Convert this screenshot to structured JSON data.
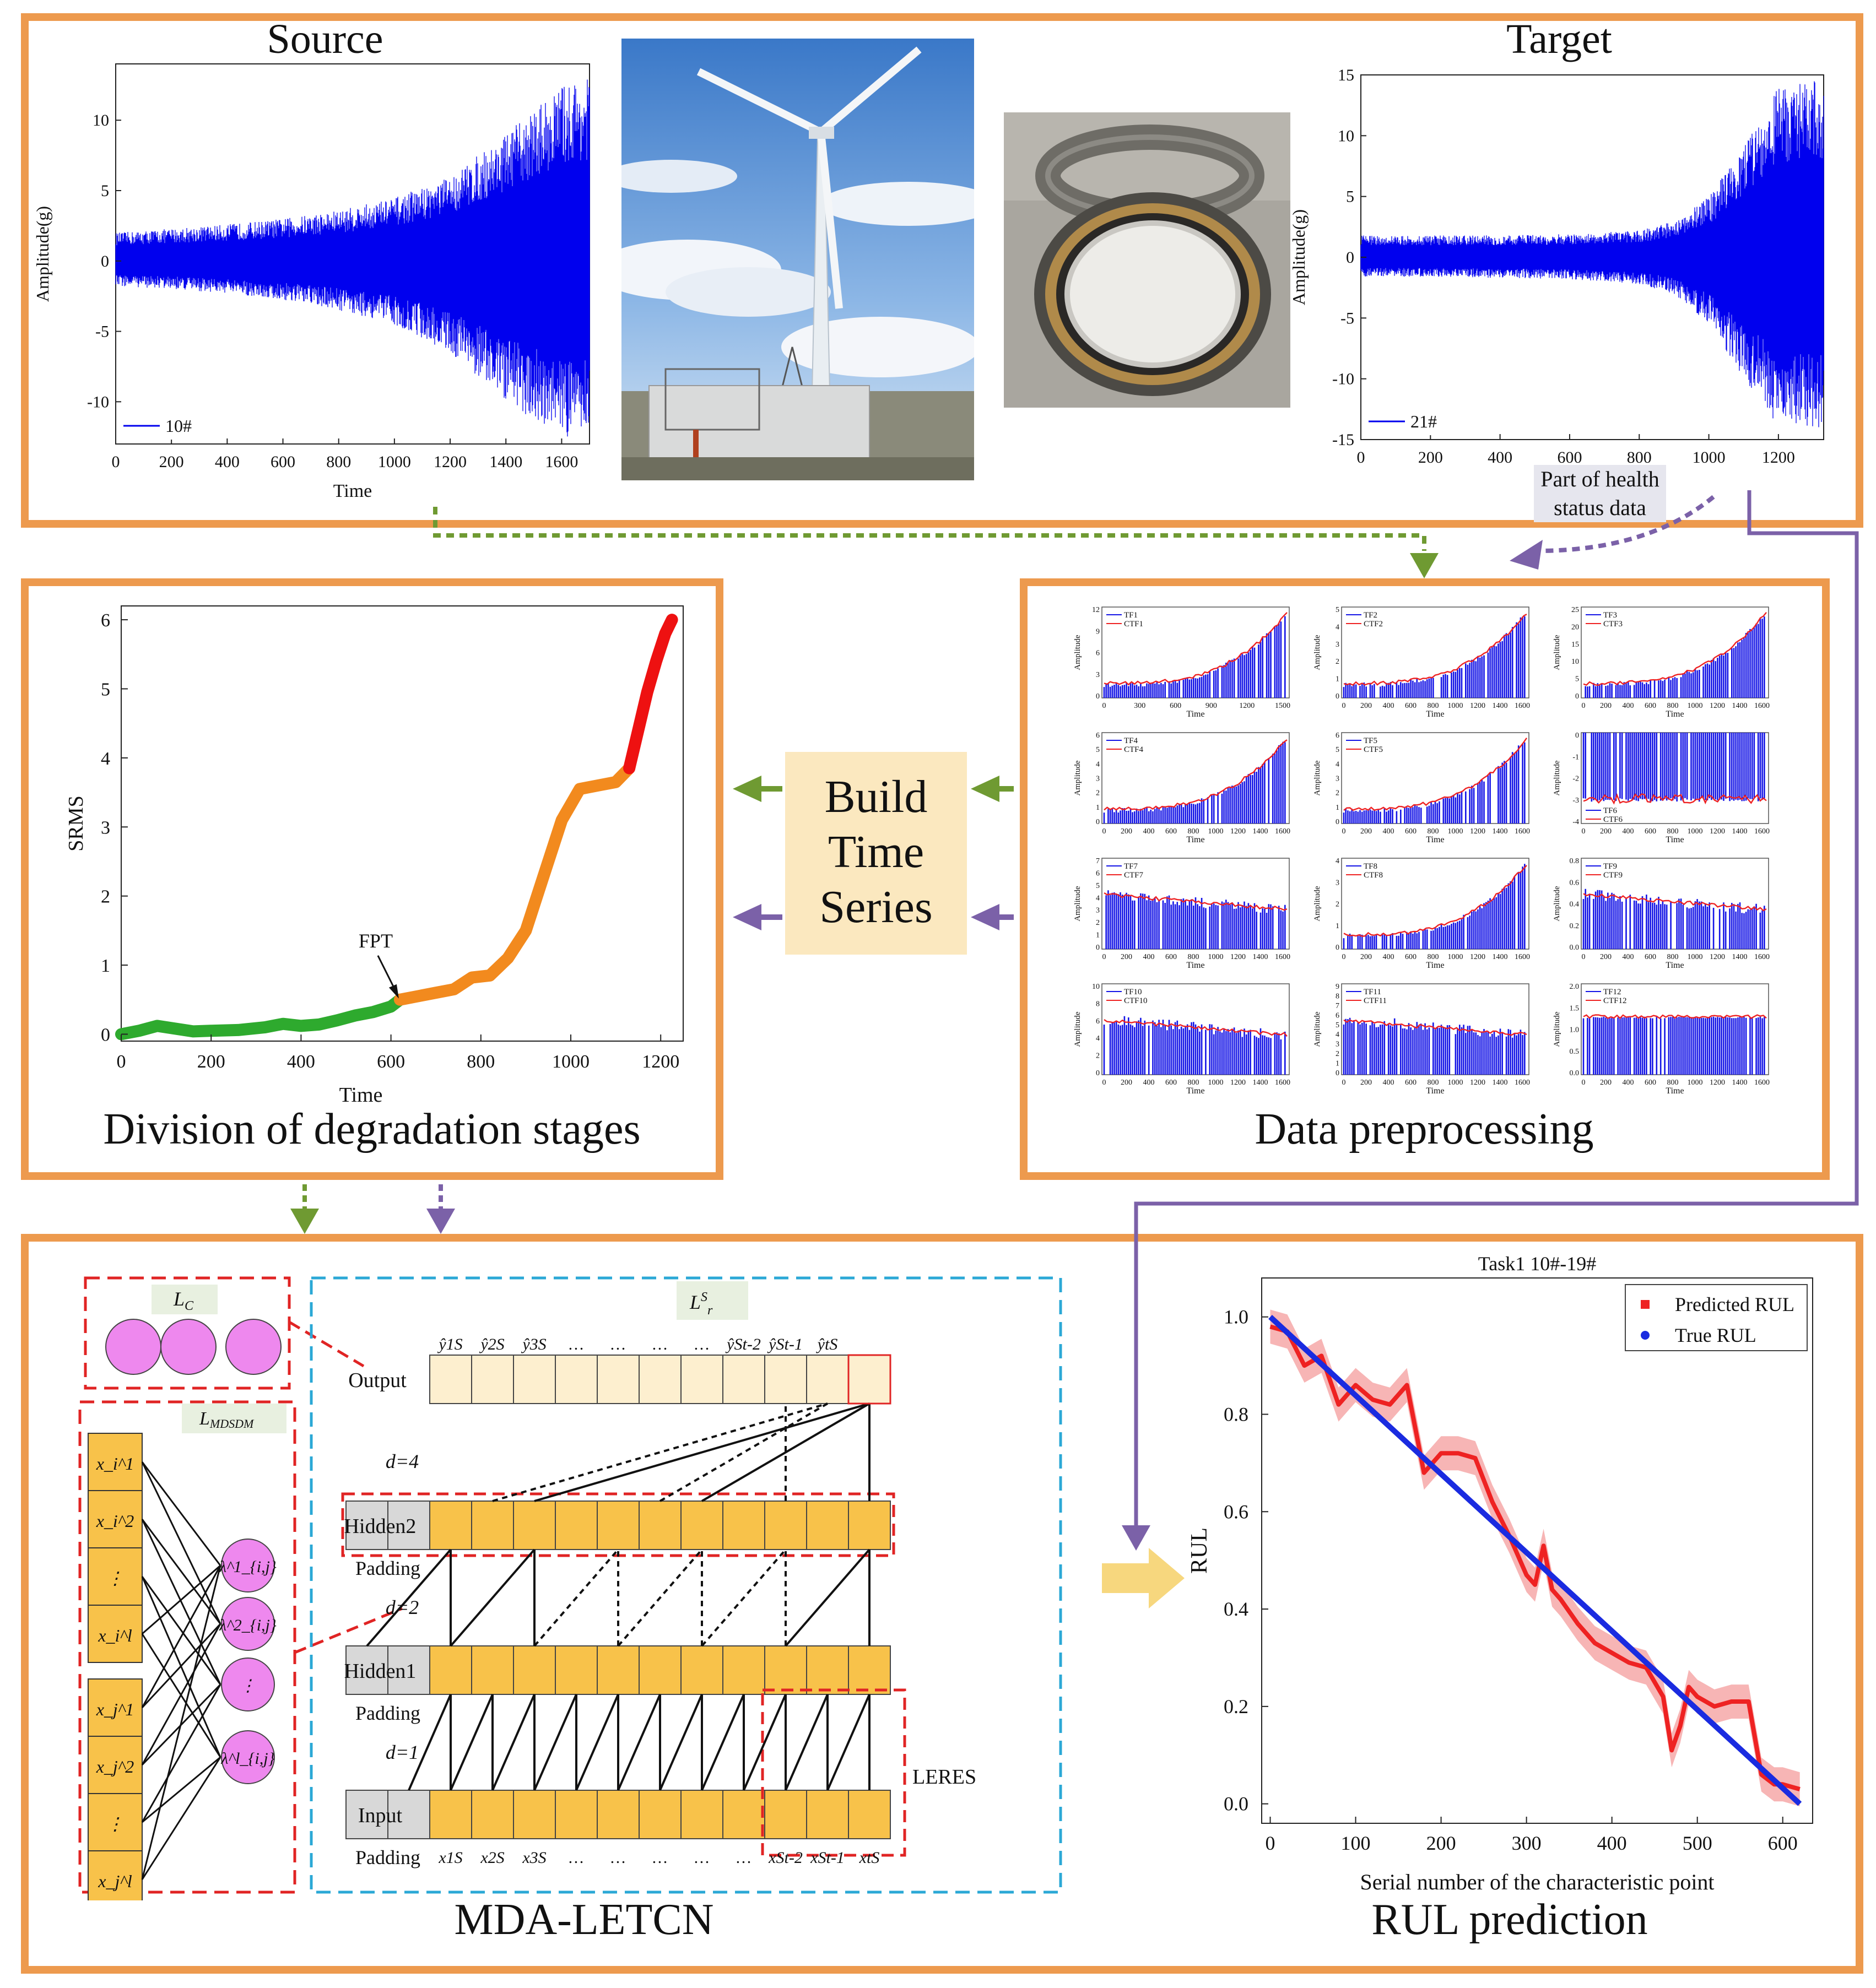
{
  "colors": {
    "section_border": "#ED9A4E",
    "green_arrow": "#6F9A32",
    "purple_arrow": "#7B61A8",
    "vibration": "#0000EE",
    "stage_healthy": "#2EAA2E",
    "stage_degrading": "#F28A1E",
    "stage_failure": "#EE1111",
    "predicted": "#EE2222",
    "true_line": "#1A2BE0",
    "build_box": "#FBE8BF",
    "lc_dashed": "#E02424",
    "tcn_dashed": "#2BA8D6",
    "cell_fill": "#F8C24A",
    "cell_fill_light": "#FDEFCF",
    "padding_fill": "#D8D8D8",
    "neuron_fill": "#EE88EE"
  },
  "top_section": {
    "source": {
      "title": "Source",
      "ylabel": "Amplitude(g)",
      "xlabel": "Time",
      "legend": "10#",
      "xticks": [
        "0",
        "200",
        "400",
        "600",
        "800",
        "1000",
        "1200",
        "1400",
        "1600"
      ],
      "yticks": [
        "10",
        "5",
        "0",
        "-5",
        "-10"
      ]
    },
    "photos": [
      {
        "icon": "wind-turbine-photo"
      },
      {
        "icon": "bearing-photo"
      }
    ],
    "target": {
      "title": "Target",
      "ylabel": "Amplitude(g)",
      "legend": "21#",
      "xticks": [
        "0",
        "200",
        "400",
        "600",
        "800",
        "1000",
        "1200"
      ],
      "yticks": [
        "15",
        "10",
        "5",
        "0",
        "-5",
        "-10",
        "-15"
      ],
      "health_label_line1": "Part of health",
      "health_label_line2": "status data"
    }
  },
  "degradation_section": {
    "title": "Division of degradation stages",
    "ylabel": "SRMS",
    "xlabel": "Time",
    "fpt_label": "FPT",
    "xticks": [
      "0",
      "200",
      "400",
      "600",
      "800",
      "1000",
      "1200"
    ],
    "yticks": [
      "0",
      "1",
      "2",
      "3",
      "4",
      "5",
      "6"
    ]
  },
  "chart_data": [
    {
      "type": "line",
      "title": "Source",
      "legend": [
        "10#"
      ],
      "xlabel": "Time",
      "ylabel": "Amplitude(g)",
      "xlim": [
        0,
        1700
      ],
      "ylim": [
        -13,
        14
      ],
      "x": [
        0,
        200,
        400,
        600,
        800,
        1000,
        1200,
        1400,
        1600,
        1680
      ],
      "envelope_upper": [
        2.0,
        2.3,
        2.6,
        3.0,
        3.6,
        4.5,
        6.0,
        9.0,
        12.5,
        13.0
      ],
      "envelope_lower": [
        -1.8,
        -2.0,
        -2.3,
        -2.8,
        -3.5,
        -4.5,
        -6.5,
        -10.0,
        -12.5,
        -12.5
      ]
    },
    {
      "type": "line",
      "title": "Target",
      "legend": [
        "21#"
      ],
      "xlabel": "",
      "ylabel": "Amplitude(g)",
      "xlim": [
        0,
        1330
      ],
      "ylim": [
        -15,
        15
      ],
      "x": [
        0,
        200,
        400,
        600,
        800,
        900,
        1000,
        1100,
        1200,
        1300
      ],
      "envelope_upper": [
        1.8,
        1.8,
        1.8,
        1.9,
        2.2,
        3.0,
        5.0,
        9.0,
        14.0,
        14.5
      ],
      "envelope_lower": [
        -1.6,
        -1.6,
        -1.7,
        -1.8,
        -2.2,
        -3.0,
        -5.5,
        -10.0,
        -14.0,
        -14.0
      ]
    },
    {
      "type": "line",
      "title": "Division of degradation stages",
      "xlabel": "Time",
      "ylabel": "SRMS",
      "xlim": [
        0,
        1250
      ],
      "ylim": [
        -0.1,
        6.2
      ],
      "annotations": [
        {
          "text": "FPT",
          "x": 620,
          "y": 0.5
        }
      ],
      "series": [
        {
          "name": "healthy",
          "x": [
            0,
            40,
            80,
            120,
            160,
            200,
            260,
            320,
            360,
            400,
            440,
            480,
            520,
            560,
            600,
            620
          ],
          "values": [
            0.0,
            0.05,
            0.12,
            0.08,
            0.04,
            0.05,
            0.06,
            0.1,
            0.15,
            0.12,
            0.14,
            0.2,
            0.27,
            0.32,
            0.4,
            0.5
          ]
        },
        {
          "name": "degrading",
          "x": [
            620,
            660,
            700,
            740,
            780,
            820,
            860,
            900,
            940,
            980,
            1020,
            1060,
            1100,
            1130
          ],
          "values": [
            0.5,
            0.55,
            0.6,
            0.65,
            0.82,
            0.85,
            1.1,
            1.5,
            2.3,
            3.1,
            3.55,
            3.6,
            3.65,
            3.85
          ]
        },
        {
          "name": "failure",
          "x": [
            1130,
            1150,
            1170,
            1190,
            1210,
            1225
          ],
          "values": [
            3.85,
            4.4,
            4.95,
            5.4,
            5.8,
            6.0
          ]
        }
      ]
    },
    {
      "type": "line",
      "title": "Task1 10#-19#",
      "xlabel": "Serial number of the characteristic point",
      "ylabel": "RUL",
      "xlim": [
        -10,
        635
      ],
      "ylim": [
        -0.04,
        1.08
      ],
      "legend": [
        "Predicted RUL",
        "True RUL"
      ],
      "series": [
        {
          "name": "True RUL",
          "x": [
            0,
            620
          ],
          "values": [
            1.0,
            0.0
          ]
        },
        {
          "name": "Predicted RUL",
          "x": [
            0,
            20,
            40,
            60,
            80,
            100,
            120,
            140,
            160,
            180,
            200,
            220,
            240,
            260,
            280,
            300,
            310,
            320,
            330,
            340,
            360,
            380,
            400,
            420,
            440,
            460,
            470,
            480,
            490,
            500,
            520,
            540,
            560,
            575,
            590,
            600,
            620
          ],
          "values": [
            0.98,
            0.97,
            0.9,
            0.92,
            0.82,
            0.86,
            0.83,
            0.82,
            0.86,
            0.68,
            0.72,
            0.72,
            0.71,
            0.62,
            0.55,
            0.47,
            0.45,
            0.53,
            0.44,
            0.42,
            0.37,
            0.33,
            0.31,
            0.29,
            0.28,
            0.22,
            0.11,
            0.16,
            0.24,
            0.22,
            0.2,
            0.21,
            0.21,
            0.06,
            0.04,
            0.04,
            0.03
          ]
        }
      ]
    }
  ],
  "preprocessing_section": {
    "title": "Data preprocessing",
    "panel_ylabel": "Amplitude",
    "panel_xlabel": "Time",
    "panels": [
      {
        "tf": "TF1",
        "ctf": "CTF1",
        "yticks": [
          "12",
          "9",
          "6",
          "3",
          "0"
        ],
        "xticks": [
          "0",
          "300",
          "600",
          "900",
          "1200",
          "1500"
        ],
        "shape": "rise"
      },
      {
        "tf": "TF2",
        "ctf": "CTF2",
        "yticks": [
          "5",
          "4",
          "3",
          "2",
          "1",
          "0"
        ],
        "xticks": [
          "0",
          "200",
          "400",
          "600",
          "800",
          "1000",
          "1200",
          "1400",
          "1600"
        ],
        "shape": "rise"
      },
      {
        "tf": "TF3",
        "ctf": "CTF3",
        "yticks": [
          "25",
          "20",
          "15",
          "10",
          "5",
          "0"
        ],
        "xticks": [
          "0",
          "200",
          "400",
          "600",
          "800",
          "1000",
          "1200",
          "1400",
          "1600"
        ],
        "shape": "rise"
      },
      {
        "tf": "TF4",
        "ctf": "CTF4",
        "yticks": [
          "6",
          "5",
          "4",
          "3",
          "2",
          "1",
          "0"
        ],
        "xticks": [
          "0",
          "200",
          "400",
          "600",
          "800",
          "1000",
          "1200",
          "1400",
          "1600"
        ],
        "shape": "rise"
      },
      {
        "tf": "TF5",
        "ctf": "CTF5",
        "yticks": [
          "6",
          "5",
          "4",
          "3",
          "2",
          "1",
          "0"
        ],
        "xticks": [
          "0",
          "200",
          "400",
          "600",
          "800",
          "1000",
          "1200",
          "1400",
          "1600"
        ],
        "shape": "rise"
      },
      {
        "tf": "TF6",
        "ctf": "CTF6",
        "yticks": [
          "0",
          "-1",
          "-2",
          "-3",
          "-4"
        ],
        "xticks": [
          "0",
          "200",
          "400",
          "600",
          "800",
          "1000",
          "1200",
          "1400",
          "1600"
        ],
        "shape": "negative"
      },
      {
        "tf": "TF7",
        "ctf": "CTF7",
        "yticks": [
          "7",
          "6",
          "5",
          "4",
          "3",
          "2",
          "1",
          "0"
        ],
        "xticks": [
          "0",
          "200",
          "400",
          "600",
          "800",
          "1000",
          "1200",
          "1400",
          "1600"
        ],
        "shape": "flat"
      },
      {
        "tf": "TF8",
        "ctf": "CTF8",
        "yticks": [
          "4",
          "3",
          "2",
          "1",
          "0"
        ],
        "xticks": [
          "0",
          "200",
          "400",
          "600",
          "800",
          "1000",
          "1200",
          "1400",
          "1600"
        ],
        "shape": "rise"
      },
      {
        "tf": "TF9",
        "ctf": "CTF9",
        "yticks": [
          "0.8",
          "0.6",
          "0.4",
          "0.2",
          "0.0"
        ],
        "xticks": [
          "0",
          "200",
          "400",
          "600",
          "800",
          "1000",
          "1200",
          "1400",
          "1600"
        ],
        "shape": "flat"
      },
      {
        "tf": "TF10",
        "ctf": "CTF10",
        "yticks": [
          "10",
          "8",
          "6",
          "4",
          "2",
          "0"
        ],
        "xticks": [
          "0",
          "200",
          "400",
          "600",
          "800",
          "1000",
          "1200",
          "1400",
          "1600"
        ],
        "shape": "flat"
      },
      {
        "tf": "TF11",
        "ctf": "CTF11",
        "yticks": [
          "9",
          "8",
          "7",
          "6",
          "5",
          "4",
          "3",
          "2",
          "1",
          "0"
        ],
        "xticks": [
          "0",
          "200",
          "400",
          "600",
          "800",
          "1000",
          "1200",
          "1400",
          "1600"
        ],
        "shape": "flat"
      },
      {
        "tf": "TF12",
        "ctf": "CTF12",
        "yticks": [
          "2.0",
          "1.5",
          "1.0",
          "0.5",
          "0.0"
        ],
        "xticks": [
          "0",
          "200",
          "400",
          "600",
          "800",
          "1000",
          "1200",
          "1400",
          "1600"
        ],
        "shape": "flatlow"
      }
    ]
  },
  "build_box": {
    "line1": "Build",
    "line2": "Time",
    "line3": "Series"
  },
  "model_section": {
    "title": "MDA-LETCN",
    "lc_label": "L",
    "lc_sub": "C",
    "lmdsdm_label": "L",
    "lmdsdm_sub": "MDSDM",
    "lr_label": "L",
    "lr_sup": "S",
    "lr_sub": "r",
    "layer_labels": {
      "output": "Output",
      "hidden2": "Hidden2",
      "hidden1": "Hidden1",
      "input": "Input"
    },
    "padding_label": "Padding",
    "dilations": [
      "d=4",
      "d=2",
      "d=1"
    ],
    "leres_label": "LERES",
    "input_column": [
      "x_i^1",
      "x_i^2",
      "⋮",
      "x_i^l",
      "x_j^1",
      "x_j^2",
      "⋮",
      "x_j^l"
    ],
    "neurons": [
      "λ^1_{i,j}",
      "λ^2_{i,j}",
      "⋮",
      "λ^l_{i,j}"
    ],
    "output_seq": [
      "ŷ1S",
      "ŷ2S",
      "ŷ3S",
      "…",
      "…",
      "…",
      "…",
      "ŷSt-2",
      "ŷSt-1",
      "ŷtS"
    ],
    "input_seq": [
      "x1S",
      "x2S",
      "x3S",
      "…",
      "…",
      "…",
      "…",
      "…",
      "xSt-2",
      "xSt-1",
      "xtS"
    ]
  },
  "rul_section": {
    "title": "RUL prediction",
    "chart_title": "Task1 10#-19#",
    "xlabel": "Serial number of the characteristic point",
    "ylabel": "RUL",
    "legend_predicted": "Predicted RUL",
    "legend_true": "True RUL",
    "xticks": [
      "0",
      "100",
      "200",
      "300",
      "400",
      "500",
      "600"
    ],
    "yticks": [
      "0.0",
      "0.2",
      "0.4",
      "0.6",
      "0.8",
      "1.0"
    ]
  }
}
